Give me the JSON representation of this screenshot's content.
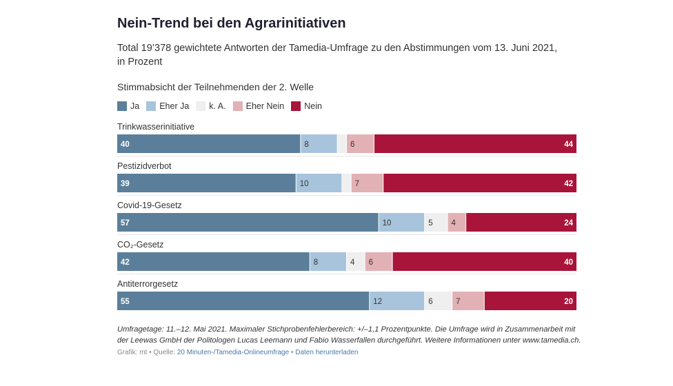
{
  "title": "Nein-Trend bei den Agrarinitiativen",
  "subtitle": "Total 19’378 gewichtete Antworten der Tamedia-Umfrage zu den Abstimmungen vom 13. Juni 2021, in Prozent",
  "section_title": "Stimmabsicht der Teilnehmenden der 2. Welle",
  "footnote": "Umfragetage: 11.–12. Mai 2021. Maximaler Stichprobenfehlerbereich: +/–1,1 Prozentpunkte. Die Umfrage wird in Zusammenarbeit mit der Leewas GmbH der Politologen Lucas Leemann und Fabio Wasserfallen durchgeführt. Weitere Informationen unter www.tamedia.ch.",
  "source": {
    "prefix": "Grafik: mt • Quelle: ",
    "source_link": "20 Minuten-/Tamedia-Onlineumfrage",
    "separator": " • ",
    "download_link": "Daten herunterladen"
  },
  "chart_data": {
    "type": "bar",
    "orientation": "horizontal",
    "stacked": true,
    "xlim": [
      0,
      100
    ],
    "categories": [
      "Trinkwasserinitiative",
      "Pestizidverbot",
      "Covid-19-Gesetz",
      "CO₂-Gesetz",
      "Antiterrorgesetz"
    ],
    "series": [
      {
        "name": "Ja",
        "color": "#5b7f9a",
        "values": [
          40,
          39,
          57,
          42,
          55
        ]
      },
      {
        "name": "Eher Ja",
        "color": "#a8c4dc",
        "values": [
          8,
          10,
          10,
          8,
          12
        ]
      },
      {
        "name": "k. A.",
        "color": "#efefef",
        "values": [
          2,
          2,
          5,
          4,
          6
        ]
      },
      {
        "name": "Eher Nein",
        "color": "#e2b1b5",
        "values": [
          6,
          7,
          4,
          6,
          7
        ]
      },
      {
        "name": "Nein",
        "color": "#a8143a",
        "values": [
          44,
          42,
          24,
          40,
          20
        ]
      }
    ],
    "data_labels": [
      [
        "40",
        "8",
        "",
        "6",
        "44"
      ],
      [
        "39",
        "10",
        "",
        "7",
        "42"
      ],
      [
        "57",
        "10",
        "5",
        "4",
        "24"
      ],
      [
        "42",
        "8",
        "4",
        "6",
        "40"
      ],
      [
        "55",
        "12",
        "6",
        "7",
        "20"
      ]
    ],
    "label_colors": [
      "#ffffff",
      "#333333",
      "#333333",
      "#333333",
      "#ffffff"
    ]
  }
}
